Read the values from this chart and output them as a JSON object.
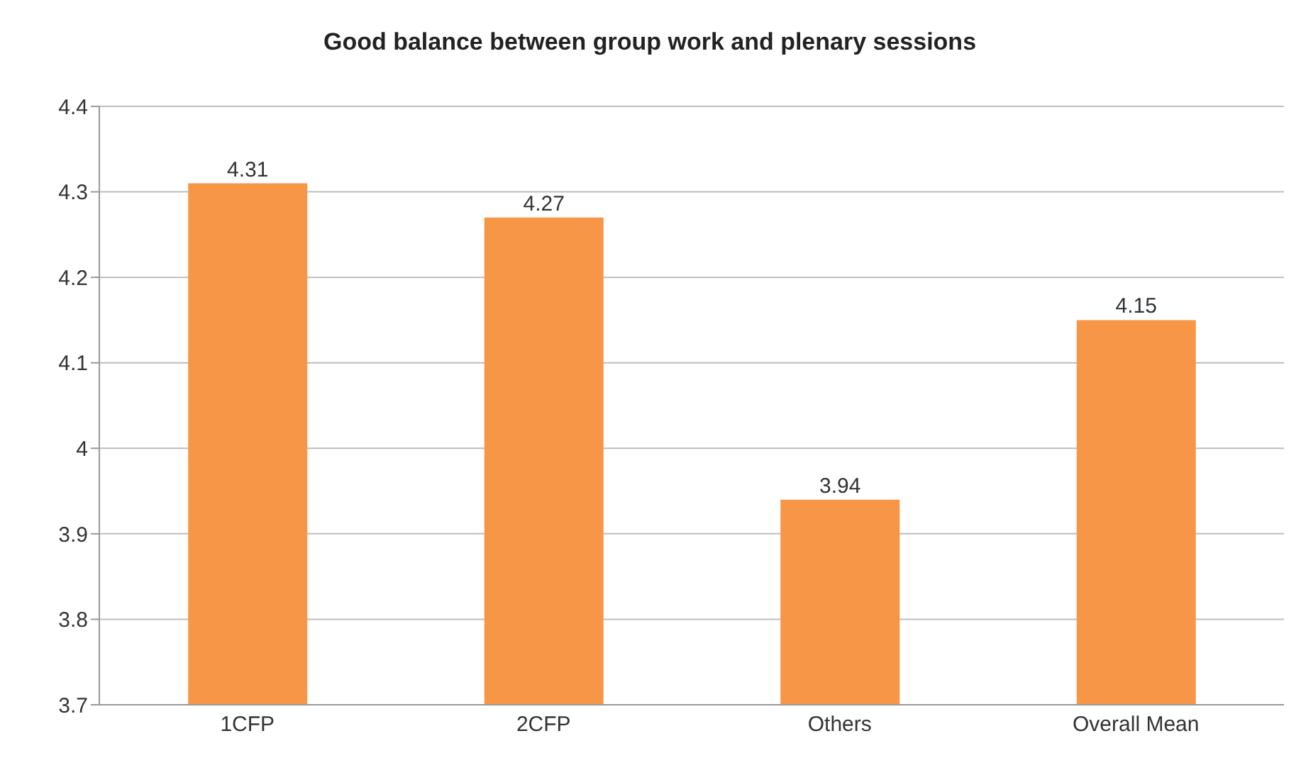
{
  "chart_data": {
    "type": "bar",
    "title": "Good balance between group work and plenary sessions",
    "categories": [
      "1CFP",
      "2CFP",
      "Others",
      "Overall Mean"
    ],
    "values": [
      4.31,
      4.27,
      3.94,
      4.15
    ],
    "color": "#f79646",
    "ylim": [
      3.7,
      4.4
    ],
    "yticks": [
      3.7,
      3.8,
      3.9,
      4,
      4.1,
      4.2,
      4.3,
      4.4
    ],
    "grid": "y",
    "data_labels": true
  }
}
